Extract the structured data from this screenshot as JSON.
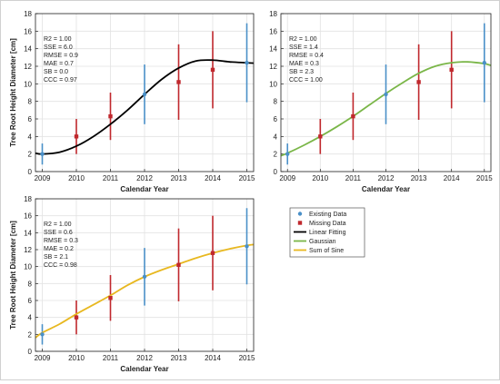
{
  "legend": {
    "items": [
      {
        "label": "Existing Data",
        "marker": "dot",
        "color": "#4a90c8"
      },
      {
        "label": "Missing Data",
        "marker": "square",
        "color": "#c0282d"
      },
      {
        "label": "Linear Fitting",
        "marker": "line",
        "color": "#000000"
      },
      {
        "label": "Gaussian",
        "marker": "line",
        "color": "#7ab648"
      },
      {
        "label": "Sum of Sine",
        "marker": "line",
        "color": "#e8b820"
      }
    ]
  },
  "colors": {
    "existing": "#4a90c8",
    "missing": "#c0282d",
    "grid": "#e2e2e2",
    "axis": "#222222"
  },
  "chart_data": [
    {
      "type": "scatter",
      "panel": "top-left",
      "xlabel": "Calendar Year",
      "ylabel": "Tree Root Height Diameter [cm]",
      "xlim": [
        2008.8,
        2015.2
      ],
      "ylim": [
        0,
        18
      ],
      "xticks": [
        2009,
        2010,
        2011,
        2012,
        2013,
        2014,
        2015
      ],
      "yticks": [
        0,
        2,
        4,
        6,
        8,
        10,
        12,
        14,
        16,
        18
      ],
      "grid": true,
      "stats": [
        "R2 = 1.00",
        "SSE = 6.0",
        "RMSE = 0.9",
        "MAE = 0.7",
        "SB = 0.0",
        "CCC = 0.97"
      ],
      "curve": {
        "name": "Linear Fitting",
        "color": "#000000",
        "x": [
          2008.8,
          2009.0,
          2009.5,
          2010.0,
          2010.5,
          2011.0,
          2011.5,
          2012.0,
          2012.5,
          2013.0,
          2013.5,
          2014.0,
          2014.5,
          2015.0,
          2015.2
        ],
        "y": [
          2.1,
          2.0,
          2.2,
          2.9,
          4.0,
          5.4,
          7.0,
          8.8,
          10.5,
          11.8,
          12.6,
          12.7,
          12.5,
          12.4,
          12.35
        ]
      },
      "existing": {
        "x": [
          2009,
          2012,
          2015
        ],
        "y": [
          2.0,
          8.8,
          12.4
        ],
        "err": [
          1.2,
          3.4,
          4.5
        ]
      },
      "missing": {
        "x": [
          2010,
          2011,
          2013,
          2014
        ],
        "y": [
          4.0,
          6.3,
          10.2,
          11.6
        ],
        "err": [
          2.0,
          2.7,
          4.3,
          4.4
        ]
      }
    },
    {
      "type": "scatter",
      "panel": "top-right",
      "xlabel": "Calendar Year",
      "ylabel": "",
      "xlim": [
        2008.8,
        2015.2
      ],
      "ylim": [
        0,
        18
      ],
      "xticks": [
        2009,
        2010,
        2011,
        2012,
        2013,
        2014,
        2015
      ],
      "yticks": [
        0,
        2,
        4,
        6,
        8,
        10,
        12,
        14,
        16,
        18
      ],
      "grid": true,
      "stats": [
        "R2 = 1.00",
        "SSE = 1.4",
        "RMSE = 0.4",
        "MAE = 0.3",
        "SB = 2.3",
        "CCC = 1.00"
      ],
      "curve": {
        "name": "Gaussian",
        "color": "#7ab648",
        "x": [
          2008.8,
          2009.0,
          2009.5,
          2010.0,
          2010.5,
          2011.0,
          2011.5,
          2012.0,
          2012.5,
          2013.0,
          2013.5,
          2014.0,
          2014.5,
          2015.0,
          2015.2
        ],
        "y": [
          1.8,
          2.1,
          3.0,
          4.0,
          5.1,
          6.3,
          7.6,
          8.9,
          10.1,
          11.2,
          12.0,
          12.4,
          12.5,
          12.3,
          12.1
        ]
      },
      "existing": {
        "x": [
          2009,
          2012,
          2015
        ],
        "y": [
          2.0,
          8.8,
          12.4
        ],
        "err": [
          1.2,
          3.4,
          4.5
        ]
      },
      "missing": {
        "x": [
          2010,
          2011,
          2013,
          2014
        ],
        "y": [
          4.0,
          6.3,
          10.2,
          11.6
        ],
        "err": [
          2.0,
          2.7,
          4.3,
          4.4
        ]
      }
    },
    {
      "type": "scatter",
      "panel": "bottom-left",
      "xlabel": "Calendar Year",
      "ylabel": "Tree Root Height Diameter [cm]",
      "xlim": [
        2008.8,
        2015.2
      ],
      "ylim": [
        0,
        18
      ],
      "xticks": [
        2009,
        2010,
        2011,
        2012,
        2013,
        2014,
        2015
      ],
      "yticks": [
        0,
        2,
        4,
        6,
        8,
        10,
        12,
        14,
        16,
        18
      ],
      "grid": true,
      "stats": [
        "R2 = 1.00",
        "SSE = 0.6",
        "RMSE = 0.3",
        "MAE = 0.2",
        "SB = 2.1",
        "CCC = 0.98"
      ],
      "curve": {
        "name": "Sum of Sine",
        "color": "#e8b820",
        "x": [
          2008.8,
          2009.0,
          2009.5,
          2010.0,
          2010.5,
          2011.0,
          2011.5,
          2012.0,
          2012.5,
          2013.0,
          2013.5,
          2014.0,
          2014.5,
          2015.0,
          2015.2
        ],
        "y": [
          1.6,
          2.2,
          3.2,
          4.4,
          5.5,
          6.6,
          7.8,
          8.8,
          9.6,
          10.3,
          11.0,
          11.6,
          12.1,
          12.5,
          12.6
        ]
      },
      "existing": {
        "x": [
          2009,
          2012,
          2015
        ],
        "y": [
          2.0,
          8.8,
          12.4
        ],
        "err": [
          1.2,
          3.4,
          4.5
        ]
      },
      "missing": {
        "x": [
          2010,
          2011,
          2013,
          2014
        ],
        "y": [
          4.0,
          6.3,
          10.2,
          11.6
        ],
        "err": [
          2.0,
          2.7,
          4.3,
          4.4
        ]
      }
    }
  ]
}
